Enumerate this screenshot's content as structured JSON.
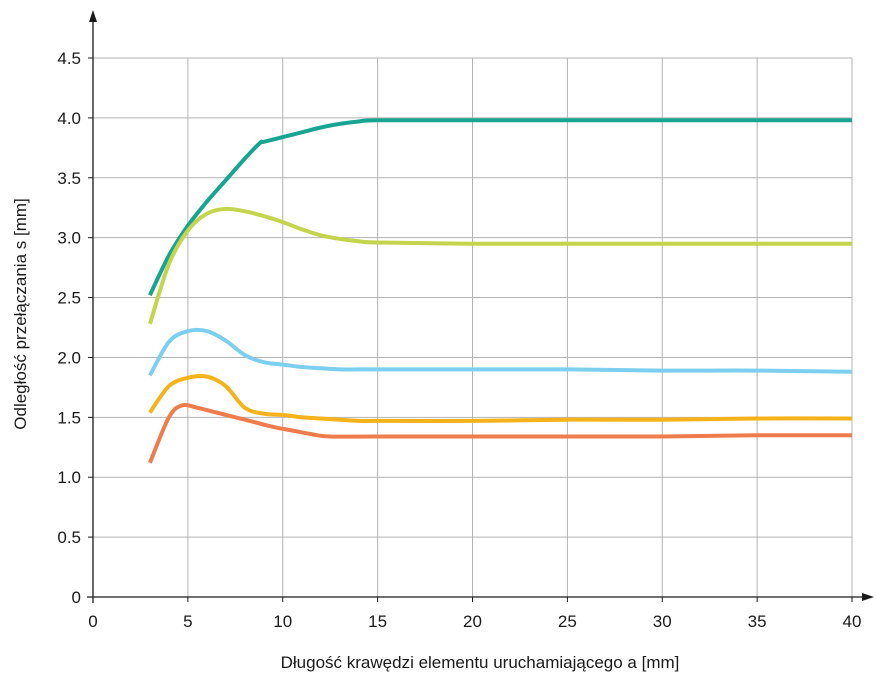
{
  "chart_data": {
    "type": "line",
    "title": "",
    "xlabel": "Długość krawędzi elementu uruchamiającego a [mm]",
    "ylabel": "Odległość przełączania s [mm]",
    "xlim": [
      0,
      40
    ],
    "ylim": [
      0,
      4.5
    ],
    "x_ticks": [
      0,
      5,
      10,
      15,
      20,
      25,
      30,
      35,
      40
    ],
    "y_ticks": [
      0,
      0.5,
      1.0,
      1.5,
      2.0,
      2.5,
      3.0,
      3.5,
      4.0,
      4.5
    ],
    "x_tick_labels": [
      "0",
      "5",
      "10",
      "15",
      "20",
      "25",
      "30",
      "35",
      "40"
    ],
    "y_tick_labels": [
      "0",
      "0.5",
      "1.0",
      "1.5",
      "2.0",
      "2.5",
      "3.0",
      "3.5",
      "4.0",
      "4.5"
    ],
    "grid": true,
    "legend": "none",
    "series": [
      {
        "color": "#17a592",
        "x": [
          3,
          4,
          5,
          6,
          7,
          8,
          8.8,
          9,
          10,
          11,
          12,
          13,
          14,
          15,
          20,
          25,
          30,
          35,
          40
        ],
        "y": [
          2.52,
          2.85,
          3.1,
          3.3,
          3.48,
          3.66,
          3.79,
          3.8,
          3.84,
          3.88,
          3.92,
          3.95,
          3.97,
          3.98,
          3.98,
          3.98,
          3.98,
          3.98,
          3.98
        ]
      },
      {
        "color": "#c3d54c",
        "x": [
          3,
          4,
          5,
          6,
          7,
          8,
          9,
          10,
          11,
          12,
          13,
          14,
          15,
          20,
          25,
          30,
          35,
          40
        ],
        "y": [
          2.28,
          2.78,
          3.06,
          3.2,
          3.24,
          3.22,
          3.18,
          3.13,
          3.07,
          3.02,
          2.99,
          2.97,
          2.96,
          2.95,
          2.95,
          2.95,
          2.95,
          2.95
        ]
      },
      {
        "color": "#7ccfee",
        "x": [
          3,
          4,
          5,
          6,
          7,
          8,
          9,
          10,
          11,
          12,
          13,
          14,
          15,
          20,
          25,
          30,
          35,
          40
        ],
        "y": [
          1.85,
          2.13,
          2.22,
          2.22,
          2.14,
          2.02,
          1.96,
          1.94,
          1.92,
          1.91,
          1.9,
          1.9,
          1.9,
          1.9,
          1.9,
          1.89,
          1.89,
          1.88
        ]
      },
      {
        "color": "#f6b21a",
        "x": [
          3,
          4,
          5,
          6,
          7,
          8,
          9,
          10,
          11,
          12,
          13,
          14,
          15,
          20,
          25,
          30,
          35,
          40
        ],
        "y": [
          1.54,
          1.76,
          1.83,
          1.84,
          1.76,
          1.58,
          1.53,
          1.52,
          1.5,
          1.49,
          1.48,
          1.47,
          1.47,
          1.47,
          1.48,
          1.48,
          1.49,
          1.49
        ]
      },
      {
        "color": "#ef7c4c",
        "x": [
          3,
          4,
          4.7,
          5.5,
          6.5,
          7.5,
          8.5,
          9.5,
          10.5,
          11.5,
          12.5,
          15,
          20,
          25,
          30,
          35,
          40
        ],
        "y": [
          1.12,
          1.5,
          1.6,
          1.58,
          1.54,
          1.5,
          1.46,
          1.42,
          1.39,
          1.36,
          1.34,
          1.34,
          1.34,
          1.34,
          1.34,
          1.35,
          1.35
        ]
      }
    ]
  }
}
